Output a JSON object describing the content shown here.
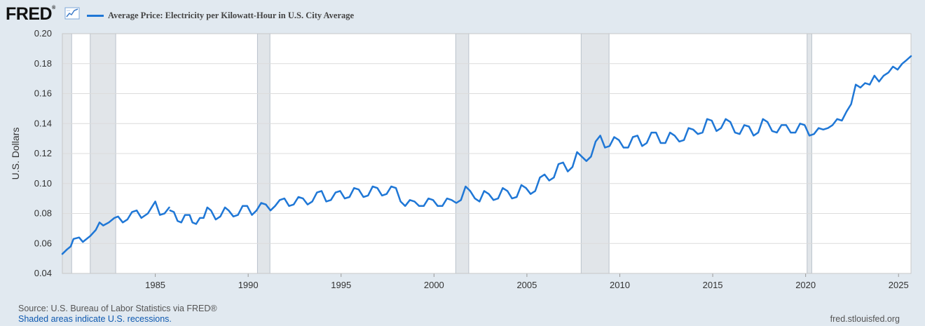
{
  "header": {
    "logo_text": "FRED",
    "logo_reg": "®",
    "logo_icon": "line-chart-icon",
    "series_title": "Average Price: Electricity per Kilowatt-Hour in U.S. City Average"
  },
  "colors": {
    "line": "#1f77d6",
    "recession": "#e1e5e9",
    "plot_bg": "#ffffff",
    "page_bg": "#e1e9f0",
    "grid": "#dcdcdc"
  },
  "footer": {
    "source": "U.S. Bureau of Labor Statistics via FRED®",
    "note": "Shaded areas indicate U.S. recessions.",
    "site": "fred.stlouisfed.org"
  },
  "chart_data": {
    "type": "line",
    "title": "Average Price: Electricity per Kilowatt-Hour in U.S. City Average",
    "xlabel": "",
    "ylabel": "U.S. Dollars",
    "xlim": [
      1980.0,
      2025.67
    ],
    "ylim": [
      0.04,
      0.2
    ],
    "grid": true,
    "legend": "top-left",
    "x_ticks": [
      "1985",
      "1990",
      "1995",
      "2000",
      "2005",
      "2010",
      "2015",
      "2020",
      "2025"
    ],
    "y_ticks": [
      "0.04",
      "0.06",
      "0.08",
      "0.10",
      "0.12",
      "0.14",
      "0.16",
      "0.18",
      "0.20"
    ],
    "recessions": [
      [
        1980.0,
        1980.5
      ],
      [
        1981.5,
        1982.87
      ],
      [
        1990.5,
        1991.17
      ],
      [
        2001.17,
        2001.87
      ],
      [
        2007.92,
        2009.42
      ],
      [
        2020.08,
        2020.33
      ]
    ],
    "series": [
      {
        "name": "Average Price: Electricity per Kilowatt-Hour in U.S. City Average",
        "points": [
          [
            1980.0,
            0.053
          ],
          [
            1980.25,
            0.056
          ],
          [
            1980.45,
            0.058
          ],
          [
            1980.6,
            0.063
          ],
          [
            1980.9,
            0.064
          ],
          [
            1981.1,
            0.061
          ],
          [
            1981.5,
            0.065
          ],
          [
            1981.8,
            0.069
          ],
          [
            1982.0,
            0.074
          ],
          [
            1982.2,
            0.072
          ],
          [
            1982.5,
            0.074
          ],
          [
            1982.8,
            0.077
          ],
          [
            1983.0,
            0.078
          ],
          [
            1983.25,
            0.074
          ],
          [
            1983.5,
            0.076
          ],
          [
            1983.75,
            0.081
          ],
          [
            1984.0,
            0.082
          ],
          [
            1984.25,
            0.077
          ],
          [
            1984.6,
            0.08
          ],
          [
            1984.85,
            0.085
          ],
          [
            1985.0,
            0.088
          ],
          [
            1985.25,
            0.079
          ],
          [
            1985.5,
            0.08
          ],
          [
            1985.75,
            0.084
          ],
          [
            null,
            null
          ],
          [
            1985.8,
            0.082
          ],
          [
            1986.0,
            0.081
          ],
          [
            1986.2,
            0.075
          ],
          [
            1986.4,
            0.074
          ],
          [
            1986.6,
            0.079
          ],
          [
            1986.85,
            0.079
          ],
          [
            1987.0,
            0.074
          ],
          [
            1987.2,
            0.073
          ],
          [
            1987.4,
            0.077
          ],
          [
            1987.6,
            0.077
          ],
          [
            1987.8,
            0.084
          ],
          [
            1988.0,
            0.082
          ],
          [
            1988.25,
            0.076
          ],
          [
            1988.5,
            0.078
          ],
          [
            1988.75,
            0.084
          ],
          [
            1988.95,
            0.082
          ],
          [
            1989.2,
            0.078
          ],
          [
            1989.45,
            0.079
          ],
          [
            1989.7,
            0.085
          ],
          [
            1989.95,
            0.085
          ],
          [
            1990.2,
            0.079
          ],
          [
            1990.45,
            0.082
          ],
          [
            1990.7,
            0.087
          ],
          [
            1990.95,
            0.086
          ],
          [
            1991.2,
            0.082
          ],
          [
            1991.45,
            0.085
          ],
          [
            1991.7,
            0.089
          ],
          [
            1991.95,
            0.09
          ],
          [
            1992.2,
            0.085
          ],
          [
            1992.45,
            0.086
          ],
          [
            1992.7,
            0.091
          ],
          [
            1992.95,
            0.09
          ],
          [
            1993.2,
            0.086
          ],
          [
            1993.45,
            0.088
          ],
          [
            1993.7,
            0.094
          ],
          [
            1993.95,
            0.095
          ],
          [
            1994.2,
            0.088
          ],
          [
            1994.45,
            0.089
          ],
          [
            1994.7,
            0.094
          ],
          [
            1994.95,
            0.095
          ],
          [
            1995.2,
            0.09
          ],
          [
            1995.45,
            0.091
          ],
          [
            1995.7,
            0.097
          ],
          [
            1995.95,
            0.096
          ],
          [
            1996.2,
            0.091
          ],
          [
            1996.45,
            0.092
          ],
          [
            1996.7,
            0.098
          ],
          [
            1996.95,
            0.097
          ],
          [
            1997.2,
            0.092
          ],
          [
            1997.45,
            0.093
          ],
          [
            1997.7,
            0.098
          ],
          [
            1997.95,
            0.097
          ],
          [
            1998.2,
            0.088
          ],
          [
            1998.45,
            0.085
          ],
          [
            1998.7,
            0.089
          ],
          [
            1998.95,
            0.088
          ],
          [
            1999.2,
            0.085
          ],
          [
            1999.45,
            0.085
          ],
          [
            1999.7,
            0.09
          ],
          [
            1999.95,
            0.089
          ],
          [
            2000.2,
            0.085
          ],
          [
            2000.45,
            0.085
          ],
          [
            2000.7,
            0.09
          ],
          [
            2000.95,
            0.089
          ],
          [
            2001.2,
            0.087
          ],
          [
            2001.45,
            0.089
          ],
          [
            2001.7,
            0.098
          ],
          [
            2001.95,
            0.095
          ],
          [
            2002.2,
            0.09
          ],
          [
            2002.45,
            0.088
          ],
          [
            2002.7,
            0.095
          ],
          [
            2002.95,
            0.093
          ],
          [
            2003.2,
            0.089
          ],
          [
            2003.45,
            0.09
          ],
          [
            2003.7,
            0.097
          ],
          [
            2003.95,
            0.095
          ],
          [
            2004.2,
            0.09
          ],
          [
            2004.45,
            0.091
          ],
          [
            2004.7,
            0.099
          ],
          [
            2004.95,
            0.097
          ],
          [
            2005.2,
            0.093
          ],
          [
            2005.45,
            0.095
          ],
          [
            2005.7,
            0.104
          ],
          [
            2005.95,
            0.106
          ],
          [
            2006.2,
            0.102
          ],
          [
            2006.45,
            0.104
          ],
          [
            2006.7,
            0.113
          ],
          [
            2006.95,
            0.114
          ],
          [
            2007.2,
            0.108
          ],
          [
            2007.45,
            0.111
          ],
          [
            2007.7,
            0.121
          ],
          [
            2007.95,
            0.118
          ],
          [
            2008.2,
            0.115
          ],
          [
            2008.45,
            0.118
          ],
          [
            2008.7,
            0.128
          ],
          [
            2008.95,
            0.132
          ],
          [
            2009.2,
            0.124
          ],
          [
            2009.45,
            0.125
          ],
          [
            2009.7,
            0.131
          ],
          [
            2009.95,
            0.129
          ],
          [
            2010.2,
            0.124
          ],
          [
            2010.45,
            0.124
          ],
          [
            2010.7,
            0.131
          ],
          [
            2010.95,
            0.132
          ],
          [
            2011.2,
            0.125
          ],
          [
            2011.45,
            0.127
          ],
          [
            2011.7,
            0.134
          ],
          [
            2011.95,
            0.134
          ],
          [
            2012.2,
            0.127
          ],
          [
            2012.45,
            0.127
          ],
          [
            2012.7,
            0.134
          ],
          [
            2012.95,
            0.132
          ],
          [
            2013.2,
            0.128
          ],
          [
            2013.45,
            0.129
          ],
          [
            2013.7,
            0.137
          ],
          [
            2013.95,
            0.136
          ],
          [
            2014.2,
            0.133
          ],
          [
            2014.45,
            0.134
          ],
          [
            2014.7,
            0.143
          ],
          [
            2014.95,
            0.142
          ],
          [
            2015.2,
            0.135
          ],
          [
            2015.45,
            0.137
          ],
          [
            2015.7,
            0.143
          ],
          [
            2015.95,
            0.141
          ],
          [
            2016.2,
            0.134
          ],
          [
            2016.45,
            0.133
          ],
          [
            2016.7,
            0.139
          ],
          [
            2016.95,
            0.138
          ],
          [
            2017.2,
            0.132
          ],
          [
            2017.45,
            0.134
          ],
          [
            2017.7,
            0.143
          ],
          [
            2017.95,
            0.141
          ],
          [
            2018.2,
            0.135
          ],
          [
            2018.45,
            0.134
          ],
          [
            2018.7,
            0.139
          ],
          [
            2018.95,
            0.139
          ],
          [
            2019.2,
            0.134
          ],
          [
            2019.45,
            0.134
          ],
          [
            2019.7,
            0.14
          ],
          [
            2019.95,
            0.139
          ],
          [
            2020.2,
            0.132
          ],
          [
            2020.45,
            0.133
          ],
          [
            2020.7,
            0.137
          ],
          [
            2020.95,
            0.136
          ],
          [
            2021.2,
            0.137
          ],
          [
            2021.45,
            0.139
          ],
          [
            2021.7,
            0.143
          ],
          [
            2021.95,
            0.142
          ],
          [
            2022.2,
            0.148
          ],
          [
            2022.45,
            0.153
          ],
          [
            2022.7,
            0.166
          ],
          [
            2022.95,
            0.164
          ],
          [
            2023.2,
            0.167
          ],
          [
            2023.45,
            0.166
          ],
          [
            2023.7,
            0.172
          ],
          [
            2023.95,
            0.168
          ],
          [
            2024.2,
            0.172
          ],
          [
            2024.45,
            0.174
          ],
          [
            2024.7,
            0.178
          ],
          [
            2024.95,
            0.176
          ],
          [
            2025.2,
            0.18
          ],
          [
            2025.4,
            0.182
          ],
          [
            2025.67,
            0.185
          ]
        ]
      }
    ]
  }
}
